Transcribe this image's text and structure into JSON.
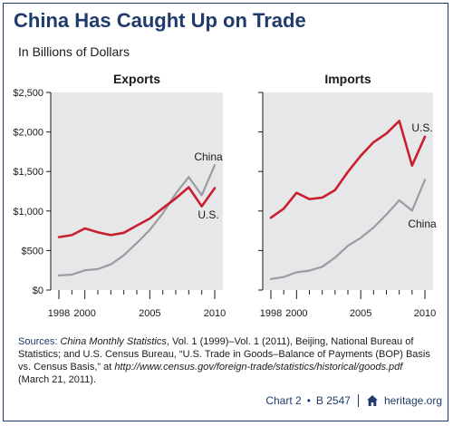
{
  "header": {
    "title": "China Has Caught Up on Trade",
    "subtitle": "In Billions of Dollars"
  },
  "chart_data": [
    {
      "type": "line",
      "title": "Exports",
      "x": [
        1998,
        1999,
        2000,
        2001,
        2002,
        2003,
        2004,
        2005,
        2006,
        2007,
        2008,
        2009,
        2010
      ],
      "xticks": [
        1998,
        2000,
        2005,
        2010
      ],
      "xtick_labels": [
        "1998",
        "2000",
        "2005",
        "2010"
      ],
      "ylim": [
        0,
        2500
      ],
      "yticks": [
        0,
        500,
        1000,
        1500,
        2000,
        2500
      ],
      "ytick_labels": [
        "$0",
        "$500",
        "$1,000",
        "$1,500",
        "$2,000",
        "$2,500"
      ],
      "grid": false,
      "series": [
        {
          "name": "China",
          "color": "#9a9ca0",
          "values": [
            185,
            195,
            250,
            265,
            325,
            440,
            595,
            760,
            970,
            1220,
            1430,
            1200,
            1580
          ]
        },
        {
          "name": "U.S.",
          "color": "#c8202e",
          "values": [
            670,
            695,
            780,
            730,
            695,
            725,
            815,
            905,
            1035,
            1160,
            1300,
            1060,
            1290
          ]
        }
      ]
    },
    {
      "type": "line",
      "title": "Imports",
      "x": [
        1998,
        1999,
        2000,
        2001,
        2002,
        2003,
        2004,
        2005,
        2006,
        2007,
        2008,
        2009,
        2010
      ],
      "xticks": [
        1998,
        2000,
        2005,
        2010
      ],
      "xtick_labels": [
        "1998",
        "2000",
        "2005",
        "2010"
      ],
      "ylim": [
        0,
        2500
      ],
      "yticks": [
        0,
        500,
        1000,
        1500,
        2000,
        2500
      ],
      "grid": false,
      "series": [
        {
          "name": "U.S.",
          "color": "#c8202e",
          "values": [
            915,
            1030,
            1230,
            1150,
            1170,
            1265,
            1495,
            1700,
            1870,
            1980,
            2140,
            1575,
            1940
          ]
        },
        {
          "name": "China",
          "color": "#9a9ca0",
          "values": [
            140,
            165,
            225,
            245,
            295,
            410,
            560,
            660,
            790,
            955,
            1135,
            1005,
            1395
          ]
        }
      ]
    }
  ],
  "sources": {
    "label": "Sources:",
    "part1": "China Monthly Statistics",
    "part2": ", Vol. 1 (1999)–Vol. 1 (2011), Beijing, National Bureau of Statistics; and U.S. Census Bureau, “U.S. Trade in Goods–Balance of Payments (BOP) Basis vs. Census Basis,” at ",
    "url": "http://www.census.gov/foreign-trade/statistics/historical/goods.pdf",
    "part3": " (March 21, 2011)."
  },
  "footer": {
    "chart_ref": "Chart 2",
    "bullet": "•",
    "code": "B 2547",
    "site": "heritage.org",
    "house_icon": "house-icon"
  }
}
